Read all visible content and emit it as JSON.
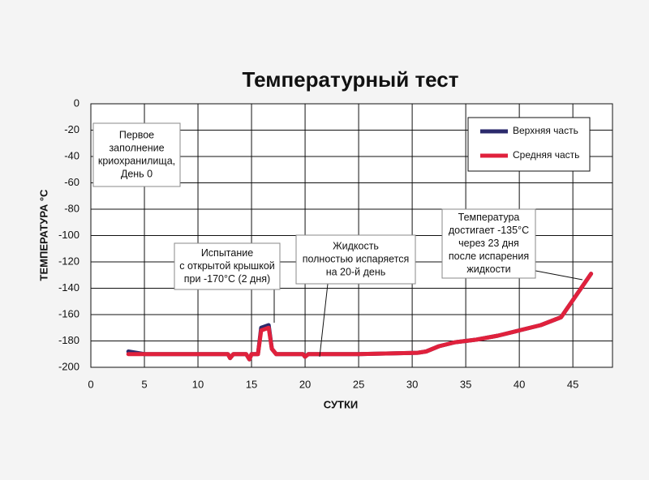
{
  "chart_data": {
    "type": "line",
    "title": "Температурный тест",
    "xlabel": "СУТКИ",
    "ylabel": "ТЕМПЕРАТУРА °C",
    "xlim": [
      0,
      48.7
    ],
    "xticks": [
      0,
      5,
      10,
      15,
      20,
      25,
      30,
      35,
      40,
      45
    ],
    "ylim": [
      -200,
      0
    ],
    "yticks": [
      0,
      -20,
      -40,
      -60,
      -80,
      -100,
      -120,
      -140,
      -160,
      -180,
      -200
    ],
    "grid": true,
    "legend": "upper right",
    "x": [
      3.5,
      5,
      10,
      12.8,
      13,
      13.3,
      14.5,
      14.8,
      15,
      15.6,
      15.9,
      16.6,
      16.9,
      17.3,
      19.8,
      20,
      20.3,
      25,
      30.5,
      31.3,
      32.5,
      34,
      36,
      38,
      40,
      42,
      43.9,
      46.7
    ],
    "series": [
      {
        "name": "Верхняя часть",
        "color": "#2b2a6c",
        "values": [
          -188,
          -190,
          -190,
          -190,
          -193,
          -190,
          -190,
          -194,
          -190,
          -190,
          -170,
          -168,
          -186,
          -190,
          -190,
          -192,
          -190,
          -190,
          -189,
          -188,
          -184,
          -181,
          -179,
          -176,
          -172,
          -168,
          -162,
          -129
        ]
      },
      {
        "name": "Средняя часть",
        "color": "#e0213c",
        "values": [
          -190,
          -190,
          -190,
          -190,
          -193,
          -190,
          -190,
          -194,
          -190,
          -190,
          -172,
          -170,
          -186,
          -190,
          -190,
          -192,
          -190,
          -190,
          -189,
          -188,
          -184,
          -181,
          -179,
          -176,
          -172,
          -168,
          -162,
          -129
        ]
      }
    ],
    "annotations": [
      {
        "lines": [
          "Первое",
          "заполнение",
          "криохранилища,",
          "День 0"
        ]
      },
      {
        "lines": [
          "Испытание",
          "с открытой крышкой",
          "при -170°C (2 дня)"
        ]
      },
      {
        "lines": [
          "Жидкость",
          "полностью испаряется",
          "на 20-й день"
        ]
      },
      {
        "lines": [
          "Температура",
          "достигает -135°C",
          "через 23 дня",
          "после испарения",
          "жидкости"
        ]
      }
    ]
  }
}
